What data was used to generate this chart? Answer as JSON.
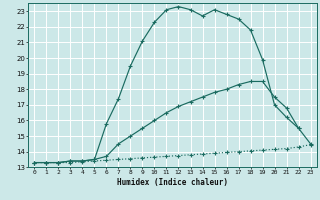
{
  "title": "",
  "xlabel": "Humidex (Indice chaleur)",
  "bg_color": "#cce8e8",
  "grid_color": "#ffffff",
  "line_color": "#1a6b60",
  "xlim": [
    -0.5,
    23.5
  ],
  "ylim": [
    13,
    23.5
  ],
  "xticks": [
    0,
    1,
    2,
    3,
    4,
    5,
    6,
    7,
    8,
    9,
    10,
    11,
    12,
    13,
    14,
    15,
    16,
    17,
    18,
    19,
    20,
    21,
    22,
    23
  ],
  "yticks": [
    13,
    14,
    15,
    16,
    17,
    18,
    19,
    20,
    21,
    22,
    23
  ],
  "curve1_x": [
    0,
    1,
    2,
    3,
    4,
    5,
    6,
    7,
    8,
    9,
    10,
    11,
    12,
    13,
    14,
    15,
    16,
    17,
    18,
    19,
    20,
    21,
    22,
    23
  ],
  "curve1_y": [
    13.3,
    13.3,
    13.3,
    13.4,
    13.4,
    13.5,
    15.8,
    17.4,
    19.5,
    21.1,
    22.3,
    23.1,
    23.3,
    23.1,
    22.7,
    23.1,
    22.8,
    22.5,
    21.8,
    19.9,
    17.0,
    16.2,
    15.5,
    14.5
  ],
  "curve2_x": [
    0,
    1,
    2,
    3,
    4,
    5,
    6,
    7,
    8,
    9,
    10,
    11,
    12,
    13,
    14,
    15,
    16,
    17,
    18,
    19,
    20,
    21,
    22
  ],
  "curve2_y": [
    13.3,
    13.3,
    13.3,
    13.4,
    13.4,
    13.5,
    13.7,
    14.5,
    15.0,
    15.5,
    16.0,
    16.5,
    16.9,
    17.2,
    17.5,
    17.8,
    18.0,
    18.3,
    18.5,
    18.5,
    17.5,
    16.8,
    15.5
  ],
  "curve3_x": [
    0,
    1,
    2,
    3,
    4,
    5,
    6,
    7,
    8,
    9,
    10,
    11,
    12,
    13,
    14,
    15,
    16,
    17,
    18,
    19,
    20,
    21,
    22,
    23
  ],
  "curve3_y": [
    13.3,
    13.3,
    13.3,
    13.3,
    13.35,
    13.4,
    13.45,
    13.5,
    13.55,
    13.6,
    13.65,
    13.7,
    13.75,
    13.8,
    13.85,
    13.9,
    13.95,
    14.0,
    14.05,
    14.1,
    14.15,
    14.2,
    14.3,
    14.45
  ]
}
